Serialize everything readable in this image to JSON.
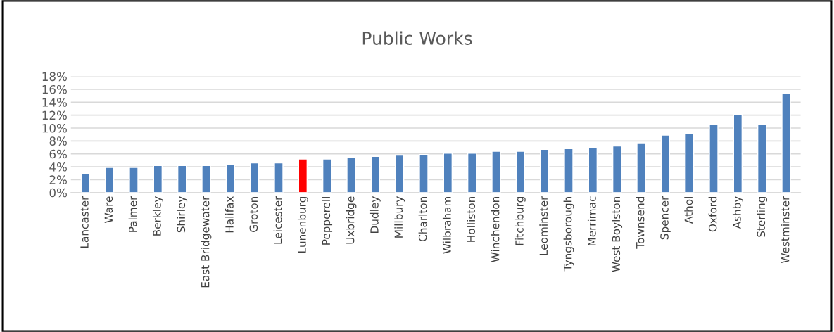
{
  "chart_data": {
    "type": "bar",
    "title": "Public Works",
    "categories": [
      "Lancaster",
      "Ware",
      "Palmer",
      "Berkley",
      "Shirley",
      "East Bridgewater",
      "Halifax",
      "Groton",
      "Leicester",
      "Lunenburg",
      "Pepperell",
      "Uxbridge",
      "Dudley",
      "Millbury",
      "Charlton",
      "Wilbraham",
      "Holliston",
      "Winchendon",
      "Fitchburg",
      "Leominster",
      "Tyngsborough",
      "Merrimac",
      "West Boylston",
      "Townsend",
      "Spencer",
      "Athol",
      "Oxford",
      "Ashby",
      "Sterling",
      "Westminster"
    ],
    "values": [
      3.0,
      3.9,
      3.9,
      4.2,
      4.2,
      4.2,
      4.3,
      4.6,
      4.6,
      5.2,
      5.2,
      5.4,
      5.6,
      5.8,
      5.9,
      6.1,
      6.1,
      6.4,
      6.4,
      6.7,
      6.8,
      7.0,
      7.2,
      7.6,
      8.9,
      9.2,
      10.5,
      12.1,
      10.5,
      15.3
    ],
    "colors": [
      "#4f81bd",
      "#4f81bd",
      "#4f81bd",
      "#4f81bd",
      "#4f81bd",
      "#4f81bd",
      "#4f81bd",
      "#4f81bd",
      "#4f81bd",
      "#ff0000",
      "#4f81bd",
      "#4f81bd",
      "#4f81bd",
      "#4f81bd",
      "#4f81bd",
      "#4f81bd",
      "#4f81bd",
      "#4f81bd",
      "#4f81bd",
      "#4f81bd",
      "#4f81bd",
      "#4f81bd",
      "#4f81bd",
      "#4f81bd",
      "#4f81bd",
      "#4f81bd",
      "#4f81bd",
      "#4f81bd",
      "#4f81bd",
      "#4f81bd"
    ],
    "ylim": [
      0,
      18
    ],
    "yticks": [
      {
        "value": 0,
        "label": "0%"
      },
      {
        "value": 2,
        "label": "2%"
      },
      {
        "value": 4,
        "label": "4%"
      },
      {
        "value": 6,
        "label": "6%"
      },
      {
        "value": 8,
        "label": "8%"
      },
      {
        "value": 10,
        "label": "10%"
      },
      {
        "value": 12,
        "label": "12%"
      },
      {
        "value": 14,
        "label": "14%"
      },
      {
        "value": 16,
        "label": "16%"
      },
      {
        "value": 18,
        "label": "18%"
      }
    ],
    "grid": "y"
  }
}
